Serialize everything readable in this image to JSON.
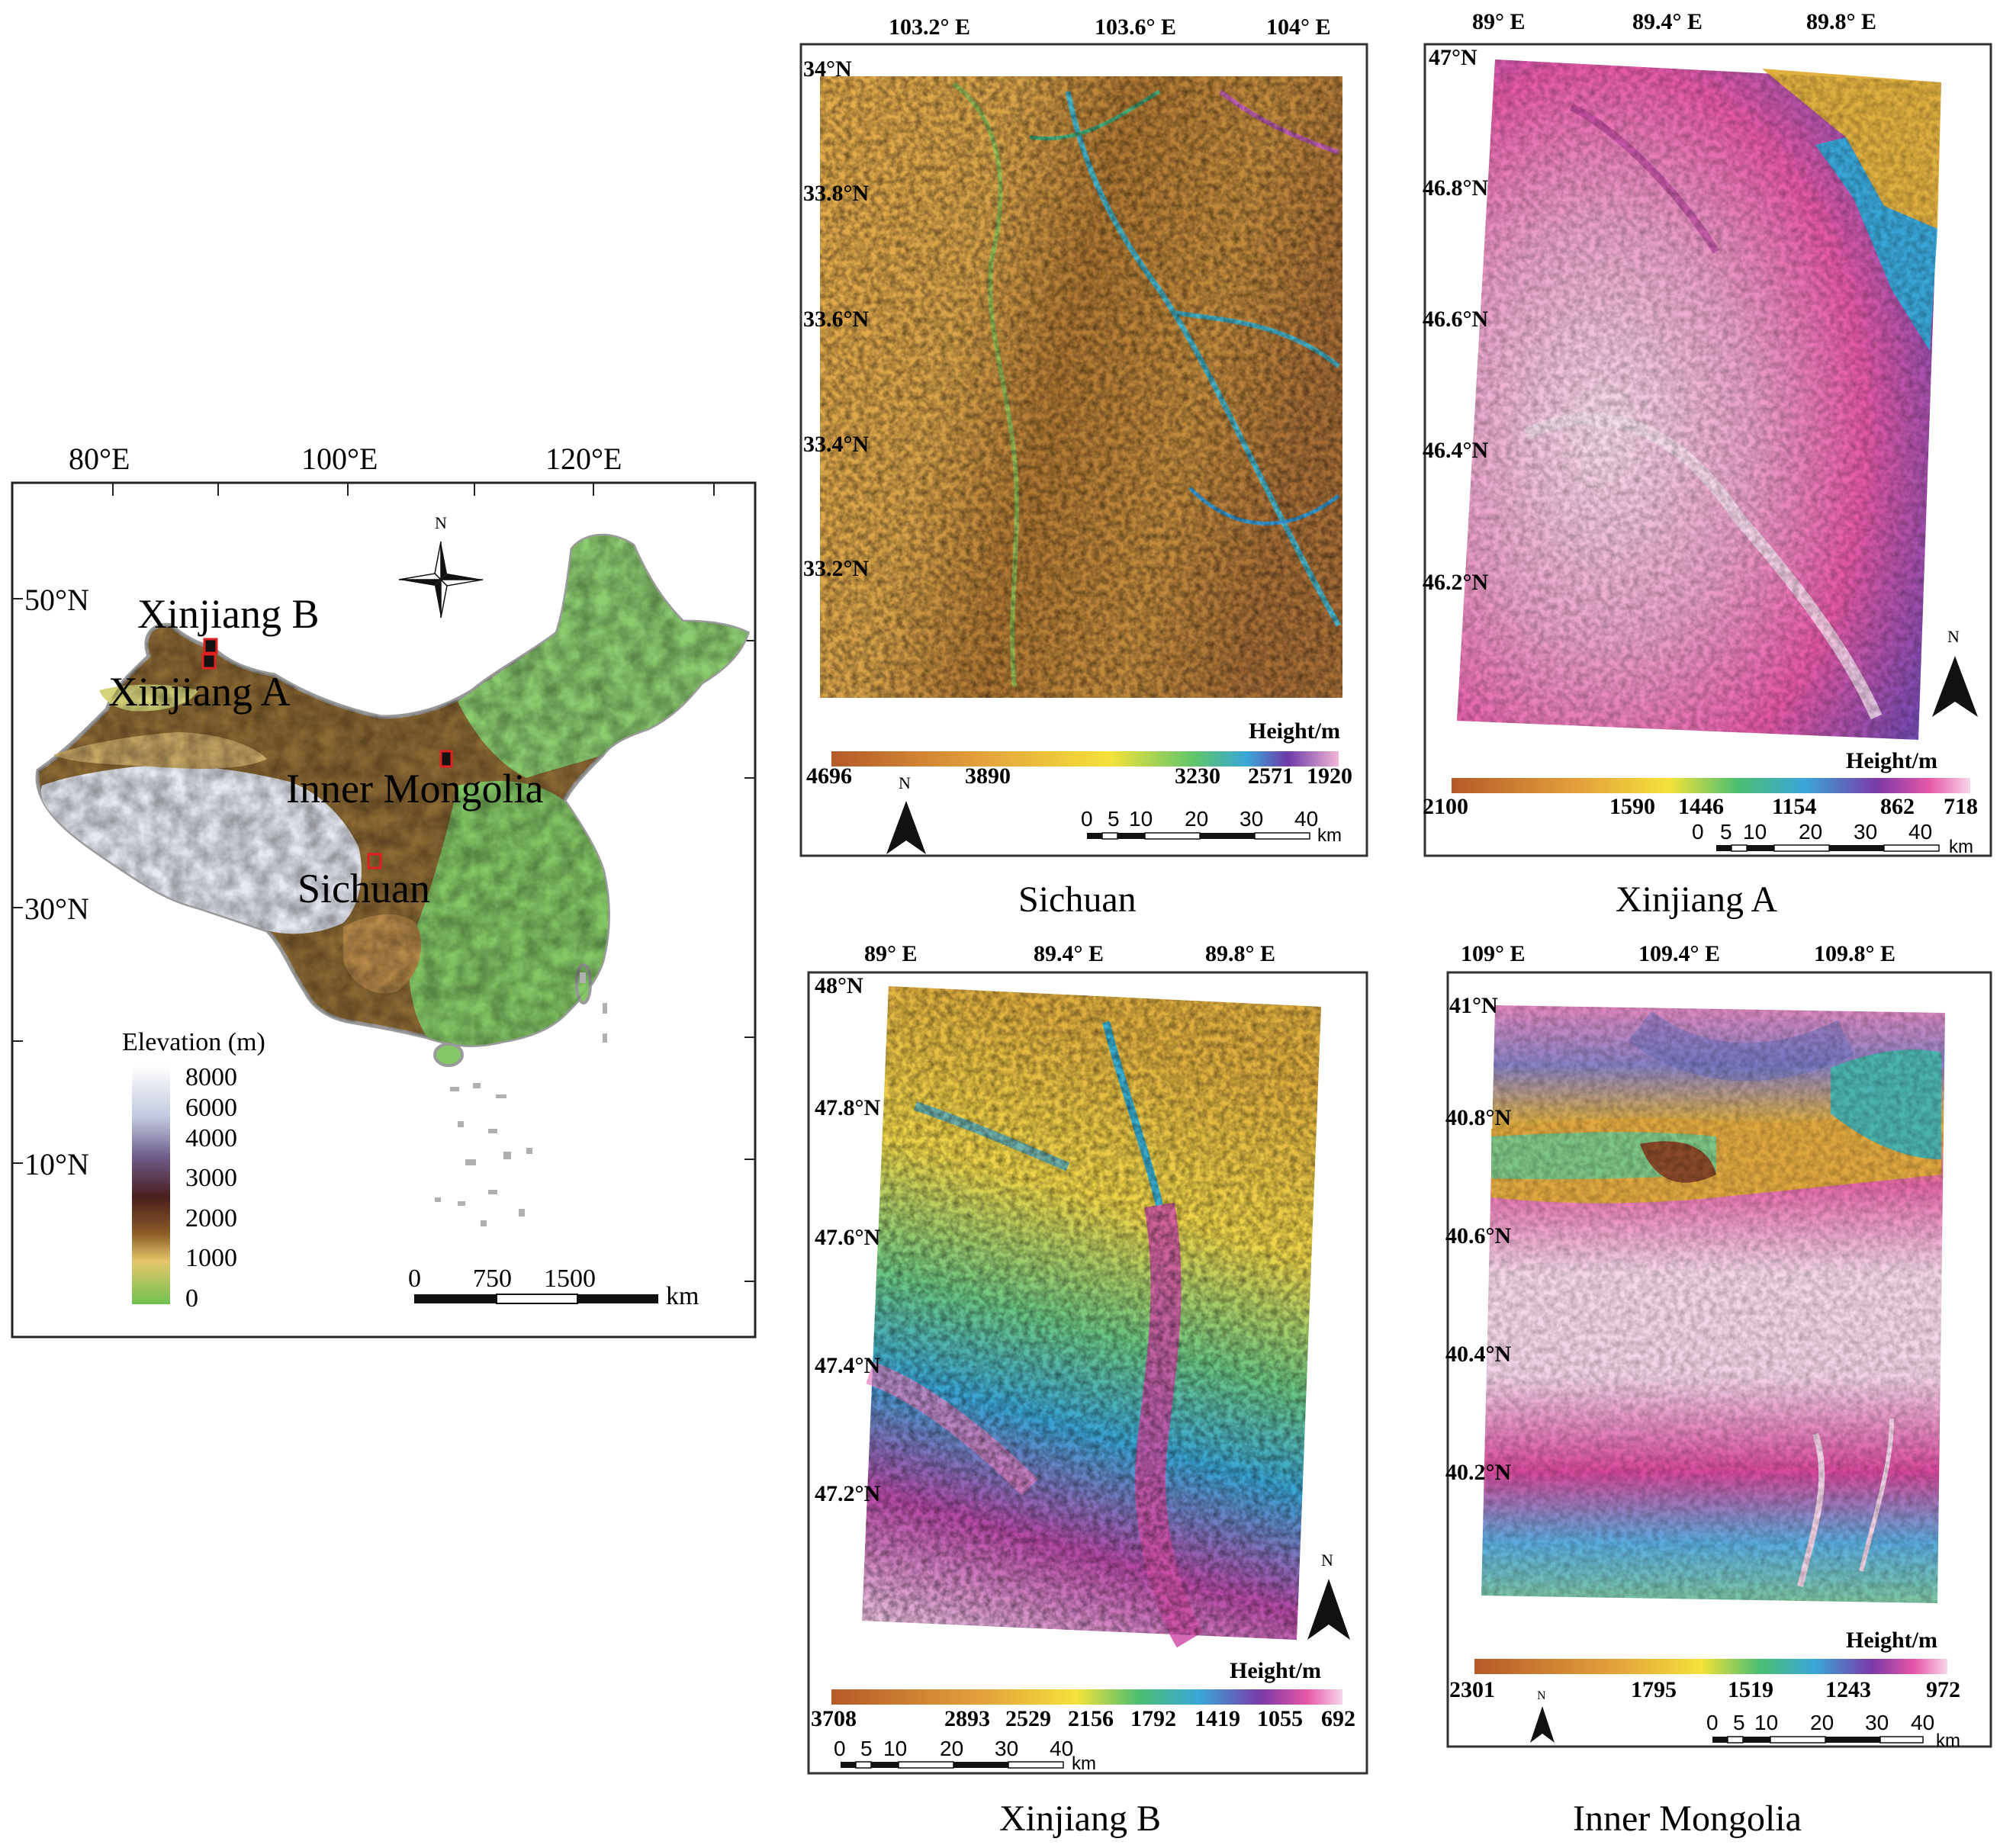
{
  "colors": {
    "low_green": "#7cc46b",
    "brown": "#9c6a2e",
    "dark_brown": "#4a2a16",
    "tibet_white": "#e9ecf4",
    "dem_orange": "#e0a848",
    "dem_pink": "#e87ab8",
    "dem_light_pink": "#f7dcea"
  },
  "overview": {
    "lon_labels": [
      "80°E",
      "100°E",
      "120°E"
    ],
    "lat_labels": [
      "50°N",
      "30°N",
      "10°N"
    ],
    "site_labels": [
      "Xinjiang B",
      "Xinjiang A",
      "Inner Mongolia",
      "Sichuan"
    ],
    "north": "N",
    "legend": {
      "title": "Elevation (m)",
      "values": [
        "8000",
        "6000",
        "4000",
        "3000",
        "2000",
        "1000",
        "0"
      ]
    },
    "scale": {
      "ticks": [
        "0",
        "750",
        "1500"
      ],
      "unit": "km"
    },
    "icons": [
      "compass-rose-icon"
    ]
  },
  "panels": [
    {
      "caption": "Sichuan",
      "lon_labels": [
        "103.2° E",
        "103.6° E",
        "104° E"
      ],
      "lat_labels": [
        "34°N",
        "33.8°N",
        "33.6°N",
        "33.4°N",
        "33.2°N"
      ],
      "legend_title": "Height/m",
      "legend_values": [
        "4696",
        "3890",
        "3230",
        "2571",
        "1920"
      ],
      "north": "N",
      "scale_ticks": [
        "0",
        "5",
        "10",
        "20",
        "30",
        "40"
      ],
      "scale_unit": "km"
    },
    {
      "caption": "Xinjiang A",
      "lon_labels": [
        "89° E",
        "89.4° E",
        "89.8° E"
      ],
      "lat_labels": [
        "47°N",
        "46.8°N",
        "46.6°N",
        "46.4°N",
        "46.2°N"
      ],
      "legend_title": "Height/m",
      "legend_values": [
        "2100",
        "1590",
        "1446",
        "1154",
        "862",
        "718"
      ],
      "north": "N",
      "scale_ticks": [
        "0",
        "5",
        "10",
        "20",
        "30",
        "40"
      ],
      "scale_unit": "km"
    },
    {
      "caption": "Xinjiang B",
      "lon_labels": [
        "89° E",
        "89.4° E",
        "89.8° E"
      ],
      "lat_labels": [
        "48°N",
        "47.8°N",
        "47.6°N",
        "47.4°N",
        "47.2°N"
      ],
      "legend_title": "Height/m",
      "legend_values": [
        "3708",
        "2893",
        "2529",
        "2156",
        "1792",
        "1419",
        "1055",
        "692"
      ],
      "north": "N",
      "scale_ticks": [
        "0",
        "5",
        "10",
        "20",
        "30",
        "40"
      ],
      "scale_unit": "km"
    },
    {
      "caption": "Inner Mongolia",
      "lon_labels": [
        "109° E",
        "109.4° E",
        "109.8° E"
      ],
      "lat_labels": [
        "41°N",
        "40.8°N",
        "40.6°N",
        "40.4°N",
        "40.2°N"
      ],
      "legend_title": "Height/m",
      "legend_values": [
        "2301",
        "1795",
        "1519",
        "1243",
        "972"
      ],
      "north": "N",
      "scale_ticks": [
        "0",
        "5",
        "10",
        "20",
        "30",
        "40"
      ],
      "scale_unit": "km"
    }
  ]
}
